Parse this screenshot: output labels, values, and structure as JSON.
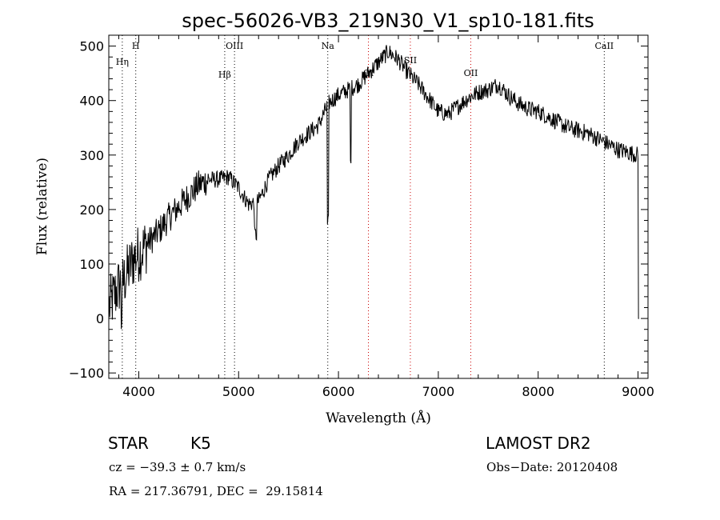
{
  "chart_data": {
    "type": "line",
    "title": "spec-56026-VB3_219N30_V1_sp10-181.fits",
    "xlabel": "Wavelength (Å)",
    "ylabel": "Flux (relative)",
    "xlim": [
      3700,
      9100
    ],
    "ylim": [
      -110,
      520
    ],
    "xticks": [
      4000,
      5000,
      6000,
      7000,
      8000,
      9000
    ],
    "yticks": [
      -100,
      0,
      100,
      200,
      300,
      400,
      500
    ],
    "grid": false,
    "line_color": "#000000",
    "lines": [
      {
        "label": "H",
        "x": 3970,
        "color": "#000000"
      },
      {
        "label": "Hη",
        "x": 3835,
        "color": "#000000"
      },
      {
        "label": "Hβ",
        "x": 4861,
        "color": "#000000"
      },
      {
        "label": "OIII",
        "x": 4959,
        "color": "#000000"
      },
      {
        "label": "Na",
        "x": 5893,
        "color": "#000000"
      },
      {
        "label": "OI",
        "x": 6300,
        "color": "#cc0000"
      },
      {
        "label": "SII",
        "x": 6720,
        "color": "#cc0000"
      },
      {
        "label": "OII",
        "x": 7325,
        "color": "#cc0000"
      },
      {
        "label": "CaII",
        "x": 8662,
        "color": "#000000"
      }
    ],
    "spectrum_x": [
      3700,
      3750,
      3800,
      3850,
      3900,
      3950,
      4000,
      4100,
      4200,
      4300,
      4400,
      4500,
      4600,
      4700,
      4800,
      4900,
      5000,
      5100,
      5200,
      5300,
      5400,
      5500,
      5600,
      5700,
      5800,
      5900,
      6000,
      6100,
      6200,
      6300,
      6400,
      6500,
      6600,
      6700,
      6800,
      6900,
      7000,
      7100,
      7200,
      7300,
      7400,
      7500,
      7600,
      7700,
      7800,
      7900,
      8000,
      8100,
      8200,
      8300,
      8400,
      8500,
      8600,
      8700,
      8800,
      8900,
      9000
    ],
    "spectrum_y": [
      20,
      40,
      60,
      70,
      90,
      110,
      120,
      140,
      160,
      185,
      205,
      225,
      245,
      255,
      255,
      260,
      240,
      210,
      215,
      255,
      280,
      300,
      325,
      340,
      355,
      395,
      410,
      420,
      430,
      450,
      470,
      490,
      475,
      450,
      430,
      405,
      380,
      375,
      390,
      405,
      415,
      420,
      430,
      410,
      395,
      385,
      380,
      370,
      360,
      350,
      345,
      340,
      330,
      320,
      310,
      305,
      300
    ]
  },
  "info": {
    "object_type": "STAR",
    "subclass": "K5",
    "survey": "LAMOST DR2",
    "cz": "cz = −39.3 ± 0.7 km/s",
    "obs_date": "Obs−Date: 20120408",
    "coords": "RA = 217.36791, DEC =  29.15814"
  }
}
